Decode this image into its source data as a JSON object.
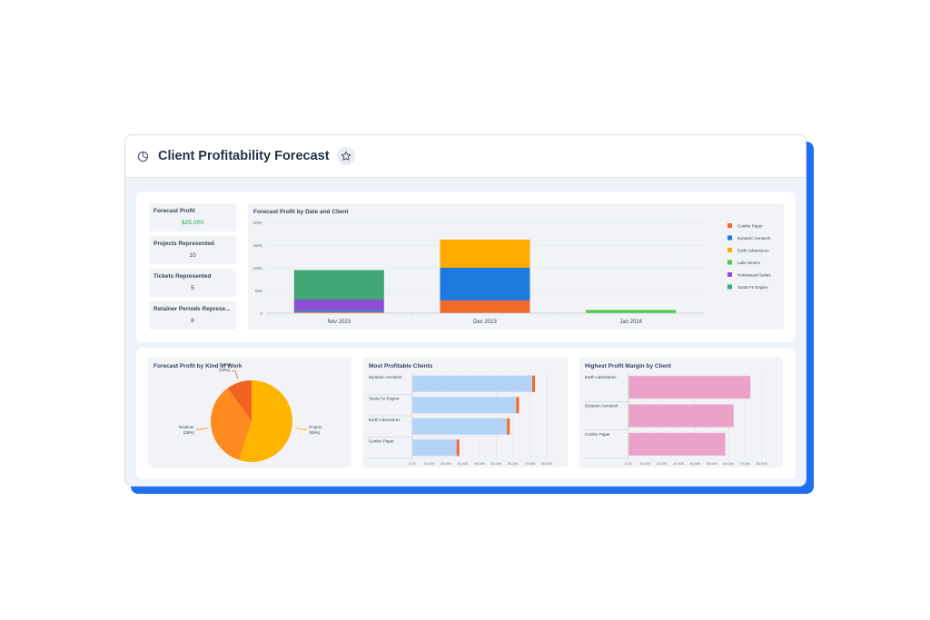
{
  "header": {
    "title": "Client Profitability Forecast",
    "icon": "pie-chart-icon",
    "favorite_icon": "star-icon"
  },
  "stats": [
    {
      "label": "Forecast Profit",
      "value": "$25,000",
      "accent": true
    },
    {
      "label": "Projects Represented",
      "value": "10",
      "accent": false
    },
    {
      "label": "Tickets Represented",
      "value": "5",
      "accent": false
    },
    {
      "label": "Retainer Periods Represe...",
      "value": "8",
      "accent": false
    }
  ],
  "colors": {
    "accent_green": "#2e9e5e",
    "frame_blue": "#1f6ff0",
    "conifer_paper": "#f26b2a",
    "dynamic_aerotech": "#1f7ae0",
    "earth_adventures": "#ffab00",
    "lake_severs": "#4cc94c",
    "homewood_suites": "#8a4fd6",
    "santa_fe_engine": "#3fa874",
    "clients_bar": "#b3d4f7",
    "clients_cap": "#f26b2a",
    "margin_bar": "#eba2c8"
  },
  "chart_data": [
    {
      "id": "profit_by_date",
      "type": "bar",
      "stacked": true,
      "title": "Forecast Profit by Date and Client",
      "categories": [
        "Nov 2023",
        "Dec 2023",
        "Jan 2024"
      ],
      "yticks": [
        "0",
        "50K",
        "100K",
        "150K",
        "200K"
      ],
      "ylim": [
        0,
        200000
      ],
      "legend_position": "right",
      "series": [
        {
          "name": "Conifer Paper",
          "color": "#f26b2a",
          "values": [
            2000,
            28000,
            0
          ]
        },
        {
          "name": "Dynamic Aerotech",
          "color": "#1f7ae0",
          "values": [
            2000,
            72000,
            0
          ]
        },
        {
          "name": "Earth Adventures",
          "color": "#ffab00",
          "values": [
            0,
            62000,
            0
          ]
        },
        {
          "name": "Lake Severs",
          "color": "#4cc94c",
          "values": [
            1000,
            0,
            7000
          ]
        },
        {
          "name": "Homewood Suites",
          "color": "#8a4fd6",
          "values": [
            25000,
            0,
            0
          ]
        },
        {
          "name": "Santa Fe Engine",
          "color": "#3fa874",
          "values": [
            65000,
            0,
            0
          ]
        }
      ]
    },
    {
      "id": "profit_by_kind",
      "type": "pie",
      "title": "Forecast Profit by Kind of Work",
      "slices": [
        {
          "name": "Project",
          "pct": "(55%)",
          "value": 55,
          "color": "#ffb400"
        },
        {
          "name": "Retainer",
          "pct": "(35%)",
          "value": 35,
          "color": "#ff8a1f"
        },
        {
          "name": "Ticket",
          "pct": "(10%)",
          "value": 10,
          "color": "#f2621f"
        }
      ]
    },
    {
      "id": "most_profitable",
      "type": "bar",
      "orientation": "horizontal",
      "title": "Most Profitable Clients",
      "categories": [
        "Dynamic Aerotech",
        "Santa Fe Engine",
        "Earth Adventures",
        "Conifer Paper"
      ],
      "values": [
        73000,
        63500,
        58000,
        28000
      ],
      "xlim": [
        0,
        80000
      ],
      "xticks": [
        "0.00",
        "10.00K",
        "20.00K",
        "30.00K",
        "40.00K",
        "50.00K",
        "60.00K",
        "70.00K",
        "80.00K"
      ]
    },
    {
      "id": "highest_margin",
      "type": "bar",
      "orientation": "horizontal",
      "title": "Highest Profit Margin by Client",
      "categories": [
        "Earth Adventures",
        "Dynamic Aerotech",
        "Conifer Paper"
      ],
      "values": [
        73000,
        63000,
        58000
      ],
      "xlim": [
        0,
        80000
      ],
      "xticks": [
        "0.00",
        "10.00K",
        "20.00K",
        "30.00K",
        "40.00K",
        "50.00K",
        "60.00K",
        "70.00K",
        "80.00K"
      ]
    }
  ]
}
